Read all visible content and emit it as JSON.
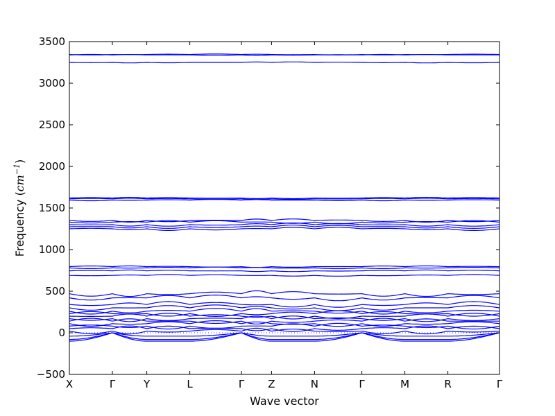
{
  "chart_data": {
    "type": "line",
    "title": "",
    "xlabel": "Wave vector",
    "ylabel_prefix": "Frequency (",
    "ylabel_unit": "cm",
    "ylabel_exponent": "−1",
    "ylabel_suffix": ")",
    "ylim": [
      -500,
      3500
    ],
    "yticks": [
      -500,
      0,
      500,
      1000,
      1500,
      2000,
      2500,
      3000,
      3500
    ],
    "ytick_labels": [
      "−500",
      "0",
      "500",
      "1000",
      "1500",
      "2000",
      "2500",
      "3000",
      "3500"
    ],
    "xlim": [
      0,
      10
    ],
    "xticks": [
      0,
      1,
      1.8,
      2.8,
      4,
      4.7,
      5.7,
      6.8,
      7.8,
      8.8,
      10
    ],
    "xtick_labels": [
      "X",
      "Γ",
      "Y",
      "L",
      "Γ",
      "Z",
      "N",
      "Γ",
      "M",
      "R",
      "Γ"
    ],
    "grid": false,
    "line_color": "#0000ff",
    "zero_line_style": "dotted",
    "band_groups_cm-1": {
      "high": [
        3250,
        3340,
        3345
      ],
      "mid_1600": [
        1595,
        1610,
        1620
      ],
      "mid_1300": [
        1250,
        1275,
        1300,
        1330,
        1350
      ],
      "mid_750": [
        690,
        745,
        780,
        795
      ],
      "low_optical": [
        20,
        50,
        80,
        110,
        140,
        170,
        200,
        230,
        260,
        300,
        340,
        420,
        470
      ],
      "acoustic_min": [
        -100,
        -80,
        -40
      ]
    }
  }
}
